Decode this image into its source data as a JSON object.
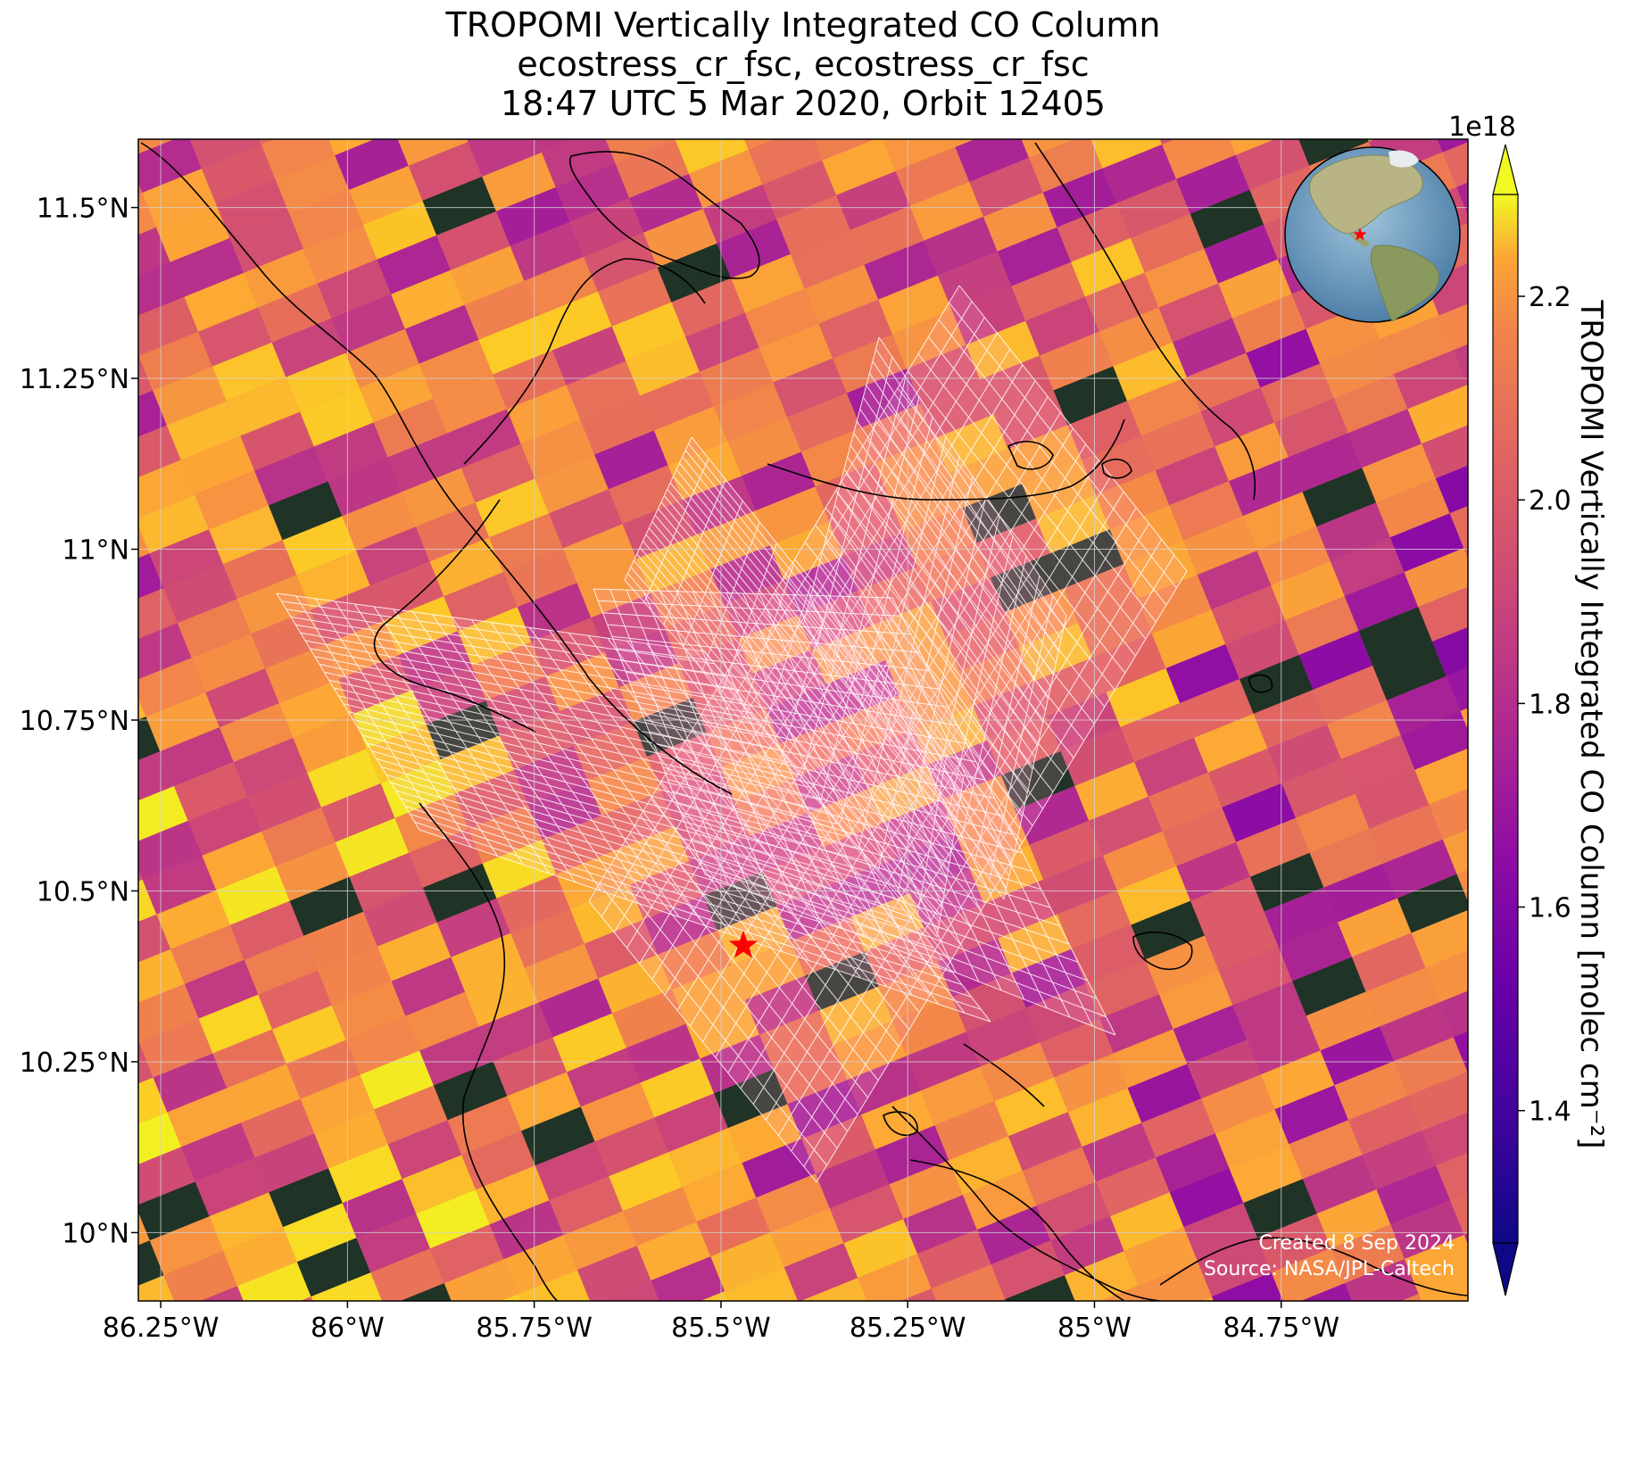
{
  "title": {
    "line1": "TROPOMI Vertically Integrated CO Column",
    "line2": "ecostress_cr_fsc, ecostress_cr_fsc",
    "line3": "18:47 UTC 5 Mar 2020, Orbit 12405"
  },
  "map": {
    "lon_range": [
      -86.28,
      -84.5
    ],
    "lat_range": [
      9.9,
      11.6
    ],
    "lon_ticks": [
      {
        "value": -86.25,
        "label": "86.25°W"
      },
      {
        "value": -86.0,
        "label": "86°W"
      },
      {
        "value": -85.75,
        "label": "85.75°W"
      },
      {
        "value": -85.5,
        "label": "85.5°W"
      },
      {
        "value": -85.25,
        "label": "85.25°W"
      },
      {
        "value": -85.0,
        "label": "85°W"
      },
      {
        "value": -84.75,
        "label": "84.75°W"
      }
    ],
    "lat_ticks": [
      {
        "value": 11.5,
        "label": "11.5°N"
      },
      {
        "value": 11.25,
        "label": "11.25°N"
      },
      {
        "value": 11.0,
        "label": "11°N"
      },
      {
        "value": 10.75,
        "label": "10.75°N"
      },
      {
        "value": 10.5,
        "label": "10.5°N"
      },
      {
        "value": 10.25,
        "label": "10.25°N"
      },
      {
        "value": 10.0,
        "label": "10°N"
      }
    ],
    "site_marker": {
      "lon": -85.47,
      "lat": 10.42,
      "color": "#ff0000"
    },
    "gridlines": true,
    "inset_globe": "top-right"
  },
  "colorbar": {
    "label": "TROPOMI Vertically Integrated CO Column [molec cm⁻²]",
    "exponent": "1e18",
    "colormap": "plasma",
    "range": [
      1.27,
      2.3
    ],
    "ticks": [
      {
        "value": 1.4,
        "label": "1.4"
      },
      {
        "value": 1.6,
        "label": "1.6"
      },
      {
        "value": 1.8,
        "label": "1.8"
      },
      {
        "value": 2.0,
        "label": "2.0"
      },
      {
        "value": 2.2,
        "label": "2.2"
      }
    ],
    "extend": "both"
  },
  "credits": {
    "created": "Created 8 Sep 2024",
    "source": "Source: NASA/JPL-Caltech"
  }
}
